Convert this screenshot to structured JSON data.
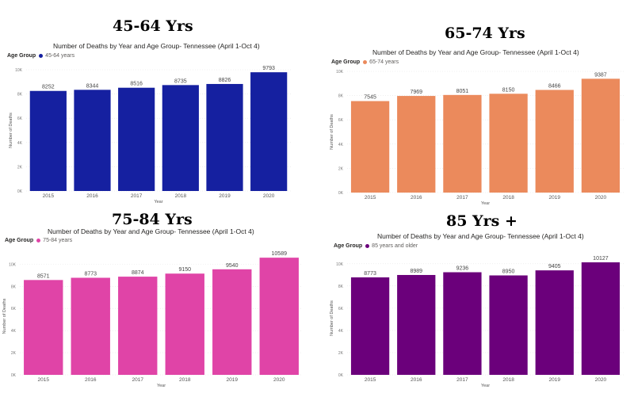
{
  "chart_data": [
    {
      "type": "bar",
      "heading": "45-64 Yrs",
      "title": "Number of Deaths by Year and Age Group- Tennessee (April 1-Oct 4)",
      "legend_title": "Age Group",
      "legend_label": "45-64 years",
      "color": "#1520A0",
      "xlabel": "Year",
      "ylabel": "Number of Deaths",
      "categories": [
        "2015",
        "2016",
        "2017",
        "2018",
        "2019",
        "2020"
      ],
      "values": [
        8252,
        8344,
        8516,
        8735,
        8826,
        9793
      ],
      "value_labels": [
        "8252",
        "8344",
        "8516",
        "8735",
        "8826",
        "9793"
      ],
      "ylim": [
        0,
        10000
      ],
      "yticks": [
        "0K",
        "2K",
        "4K",
        "6K",
        "8K",
        "10K"
      ],
      "legend_position": "top-left"
    },
    {
      "type": "bar",
      "heading": "65-74 Yrs",
      "title": "Number of Deaths by Year and Age Group- Tennessee (April 1-Oct 4)",
      "legend_title": "Age Group",
      "legend_label": "65-74 years",
      "color": "#EB8A5C",
      "xlabel": "Year",
      "ylabel": "Number of Deaths",
      "categories": [
        "2015",
        "2016",
        "2017",
        "2018",
        "2019",
        "2020"
      ],
      "values": [
        7545,
        7969,
        8051,
        8150,
        8466,
        9387
      ],
      "value_labels": [
        "7545",
        "7969",
        "8051",
        "8150",
        "8466",
        "9387"
      ],
      "ylim": [
        0,
        10000
      ],
      "yticks": [
        "0K",
        "2K",
        "4K",
        "6K",
        "8K",
        "10K"
      ],
      "legend_position": "top-left"
    },
    {
      "type": "bar",
      "heading": "75-84 Yrs",
      "title": "Number of Deaths by Year and Age Group- Tennessee (April 1-Oct 4)",
      "legend_title": "Age Group",
      "legend_label": "75-84 years",
      "color": "#E044A7",
      "xlabel": "Year",
      "ylabel": "Number of Deaths",
      "categories": [
        "2015",
        "2016",
        "2017",
        "2018",
        "2019",
        "2020"
      ],
      "values": [
        8571,
        8773,
        8874,
        9150,
        9540,
        10589
      ],
      "value_labels": [
        "8571",
        "8773",
        "8874",
        "9150",
        "9540",
        "10589"
      ],
      "ylim": [
        0,
        10600
      ],
      "yticks": [
        "0K",
        "2K",
        "4K",
        "6K",
        "8K",
        "10K"
      ],
      "legend_position": "top-left"
    },
    {
      "type": "bar",
      "heading": "85 Yrs +",
      "title": "Number of Deaths by Year and Age Group- Tennessee (April 1-Oct 4)",
      "legend_title": "Age Group",
      "legend_label": "85 years and older",
      "color": "#6B007B",
      "xlabel": "Year",
      "ylabel": "Number of Deaths",
      "categories": [
        "2015",
        "2016",
        "2017",
        "2018",
        "2019",
        "2020"
      ],
      "values": [
        8773,
        8989,
        9236,
        8950,
        9405,
        10127
      ],
      "value_labels": [
        "8773",
        "8989",
        "9236",
        "8950",
        "9405",
        "10127"
      ],
      "ylim": [
        0,
        10200
      ],
      "yticks": [
        "0K",
        "2K",
        "4K",
        "6K",
        "8K",
        "10K"
      ],
      "legend_position": "top-left"
    }
  ]
}
